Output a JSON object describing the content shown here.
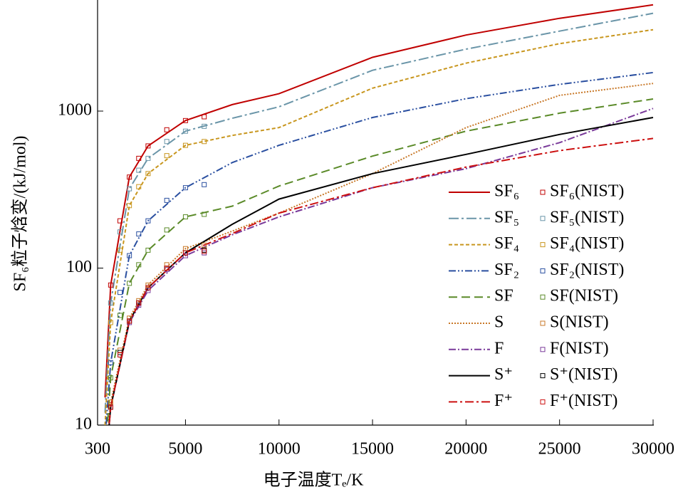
{
  "chart_data": {
    "type": "line",
    "xlabel": "电子温度Tₑ/K",
    "ylabel": "SF₆粒子焓变/(kJ/mol)",
    "xlim": [
      300,
      30000
    ],
    "xticks": [
      300,
      5000,
      10000,
      15000,
      20000,
      25000,
      30000
    ],
    "ylim": [
      10,
      5100
    ],
    "yticks": [
      10,
      100,
      1000
    ],
    "log_y": true,
    "legend": "lower right",
    "x": [
      700,
      1000,
      2000,
      3000,
      5000,
      7500,
      10000,
      15000,
      20000,
      25000,
      30000
    ],
    "nist_x": [
      1000,
      1500,
      2000,
      2500,
      3000,
      4000,
      5000,
      6000
    ],
    "series": [
      {
        "name": "SF₆",
        "color": "#c00000",
        "dash": "none",
        "values": [
          15,
          78,
          380,
          600,
          870,
          1100,
          1290,
          2200,
          3050,
          3900,
          4750
        ]
      },
      {
        "name": "SF₅",
        "color": "#6a95a8",
        "dash": "14,4,3,4",
        "values": [
          12,
          60,
          320,
          500,
          745,
          900,
          1065,
          1820,
          2480,
          3230,
          4200
        ]
      },
      {
        "name": "SF₄",
        "color": "#c8961e",
        "dash": "5,3",
        "values": [
          10,
          45,
          250,
          400,
          605,
          700,
          785,
          1400,
          2020,
          2690,
          3300
        ]
      },
      {
        "name": "SF₂",
        "color": "#2a4fa0",
        "dash": "10,3,2,3,2,3",
        "values": [
          8,
          25,
          120,
          200,
          325,
          470,
          605,
          910,
          1200,
          1480,
          1760
        ]
      },
      {
        "name": "SF",
        "color": "#5a8a28",
        "dash": "12,6",
        "values": [
          6,
          20,
          80,
          130,
          212,
          248,
          333,
          517,
          745,
          970,
          1195
        ]
      },
      {
        "name": "S",
        "color": "#c87828",
        "dash": "2,2",
        "values": [
          6,
          14,
          48,
          78,
          133,
          172,
          224,
          400,
          785,
          1260,
          1500
        ]
      },
      {
        "name": "F",
        "color": "#7a3a9a",
        "dash": "10,3,2,3",
        "values": [
          5,
          13,
          45,
          72,
          120,
          163,
          212,
          325,
          430,
          630,
          1040
        ]
      },
      {
        "name": "S⁺",
        "color": "#000000",
        "dash": "none",
        "values": [
          5,
          13,
          46,
          75,
          125,
          190,
          275,
          400,
          530,
          710,
          910
        ]
      },
      {
        "name": "F⁺",
        "color": "#cc1010",
        "dash": "12,4,3,4",
        "values": [
          5,
          13,
          46,
          75,
          125,
          166,
          224,
          325,
          440,
          560,
          670
        ]
      }
    ],
    "nist_series": [
      {
        "name": "SF₆(NIST)",
        "color": "#c00000",
        "values": [
          78,
          200,
          380,
          500,
          600,
          760,
          870,
          920
        ]
      },
      {
        "name": "SF₅(NIST)",
        "color": "#6a95a8",
        "values": [
          60,
          170,
          320,
          420,
          500,
          640,
          745,
          800
        ]
      },
      {
        "name": "SF₄(NIST)",
        "color": "#c8961e",
        "values": [
          45,
          130,
          250,
          330,
          400,
          520,
          605,
          640
        ]
      },
      {
        "name": "SF₂(NIST)",
        "color": "#2a4fa0",
        "values": [
          25,
          70,
          120,
          165,
          200,
          270,
          325,
          340
        ]
      },
      {
        "name": "SF(NIST)",
        "color": "#5a8a28",
        "values": [
          20,
          50,
          80,
          105,
          130,
          175,
          212,
          220
        ]
      },
      {
        "name": "S(NIST)",
        "color": "#c87828",
        "values": [
          14,
          30,
          48,
          62,
          78,
          105,
          133,
          140
        ]
      },
      {
        "name": "F(NIST)",
        "color": "#7a3a9a",
        "values": [
          13,
          28,
          45,
          58,
          72,
          98,
          120,
          125
        ]
      },
      {
        "name": "S⁺(NIST)",
        "color": "#000000",
        "values": [
          13,
          29,
          46,
          60,
          75,
          100,
          125,
          130
        ]
      },
      {
        "name": "F⁺(NIST)",
        "color": "#cc1010",
        "values": [
          13,
          28,
          46,
          60,
          75,
          100,
          125,
          128
        ]
      }
    ]
  }
}
